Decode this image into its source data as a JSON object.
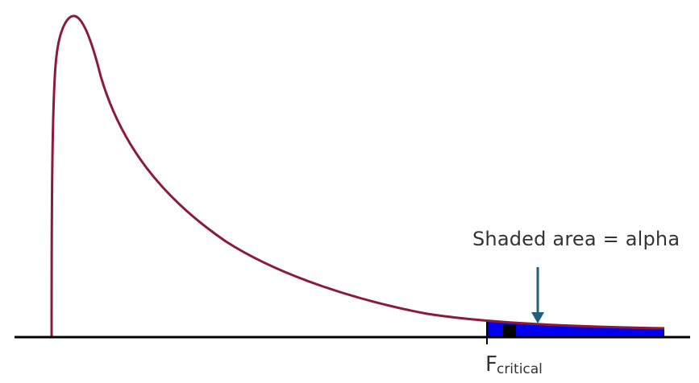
{
  "annotation": {
    "text": "Shaded area = alpha"
  },
  "critical_label": {
    "main": "F",
    "subscript": "critical"
  },
  "colors": {
    "curve": "#8b1a3d",
    "shaded_region": "#0000ee",
    "axis": "#000000",
    "arrow": "#1f5f7a",
    "text": "#333333"
  }
}
